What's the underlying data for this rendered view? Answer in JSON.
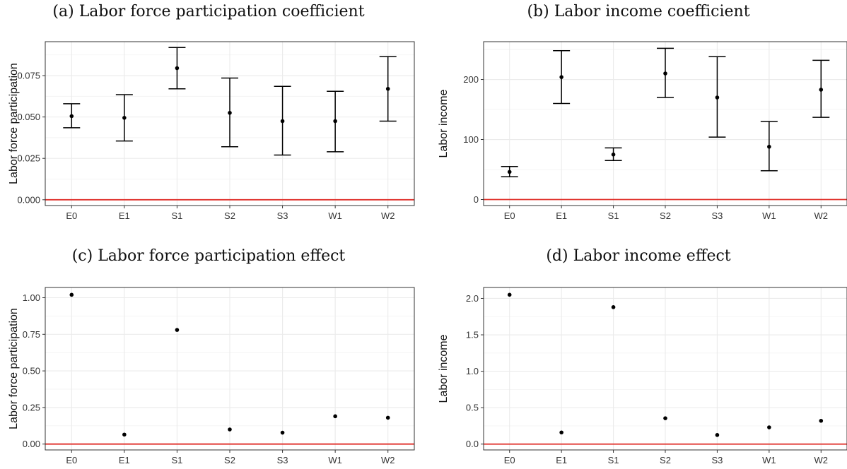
{
  "figure": {
    "panels": [
      {
        "label": "(a) Labor force participation coefficient"
      },
      {
        "label": "(b) Labor income coefficient"
      },
      {
        "label": "(c) Labor force participation effect"
      },
      {
        "label": "(d) Labor income effect"
      }
    ]
  },
  "colors": {
    "reference_line": "#e0302a",
    "points": "#000000",
    "grid": "#ebebeb",
    "panel_border": "#333333"
  },
  "chart_data": [
    {
      "type": "scatter",
      "title": "(a) Labor force participation coefficient",
      "xlabel": "",
      "ylabel": "Labor force participation",
      "categories": [
        "E0",
        "E1",
        "S1",
        "S2",
        "S3",
        "W1",
        "W2"
      ],
      "values": [
        0.0505,
        0.0495,
        0.0795,
        0.0525,
        0.0475,
        0.0475,
        0.067
      ],
      "error_low": [
        0.0435,
        0.0355,
        0.067,
        0.032,
        0.027,
        0.029,
        0.0475
      ],
      "error_high": [
        0.058,
        0.0635,
        0.092,
        0.0735,
        0.0685,
        0.0655,
        0.0865
      ],
      "yticks": [
        0.0,
        0.025,
        0.05,
        0.075
      ],
      "ytick_labels": [
        "0.000",
        "0.025",
        "0.050",
        "0.075"
      ],
      "ylim": [
        -0.0035,
        0.0955
      ],
      "reference_line": 0,
      "grid": true
    },
    {
      "type": "scatter",
      "title": "(b) Labor income coefficient",
      "xlabel": "",
      "ylabel": "Labor income",
      "categories": [
        "E0",
        "E1",
        "S1",
        "S2",
        "S3",
        "W1",
        "W2"
      ],
      "values": [
        46,
        204,
        75,
        210,
        170,
        88,
        183
      ],
      "error_low": [
        38,
        160,
        65,
        170,
        104,
        48,
        137
      ],
      "error_high": [
        55,
        248,
        86,
        252,
        238,
        130,
        232
      ],
      "yticks": [
        0,
        100,
        200
      ],
      "ytick_labels": [
        "0",
        "100",
        "200"
      ],
      "ylim": [
        -10,
        263
      ],
      "reference_line": 0,
      "grid": true
    },
    {
      "type": "scatter",
      "title": "(c) Labor force participation effect",
      "xlabel": "",
      "ylabel": "Labor force participation",
      "categories": [
        "E0",
        "E1",
        "S1",
        "S2",
        "S3",
        "W1",
        "W2"
      ],
      "values": [
        1.02,
        0.065,
        0.78,
        0.1,
        0.078,
        0.19,
        0.18
      ],
      "yticks": [
        0.0,
        0.25,
        0.5,
        0.75,
        1.0
      ],
      "ytick_labels": [
        "0.00",
        "0.25",
        "0.50",
        "0.75",
        "1.00"
      ],
      "ylim": [
        -0.04,
        1.07
      ],
      "reference_line": 0,
      "grid": true
    },
    {
      "type": "scatter",
      "title": "(d) Labor income effect",
      "xlabel": "",
      "ylabel": "Labor income",
      "categories": [
        "E0",
        "E1",
        "S1",
        "S2",
        "S3",
        "W1",
        "W2"
      ],
      "values": [
        2.05,
        0.16,
        1.88,
        0.355,
        0.125,
        0.23,
        0.32
      ],
      "yticks": [
        0.0,
        0.5,
        1.0,
        1.5,
        2.0
      ],
      "ytick_labels": [
        "0.0",
        "0.5",
        "1.0",
        "1.5",
        "2.0"
      ],
      "ylim": [
        -0.08,
        2.15
      ],
      "reference_line": 0,
      "grid": true
    }
  ]
}
